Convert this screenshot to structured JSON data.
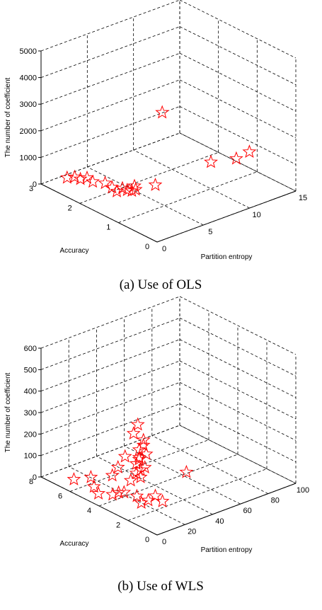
{
  "chart_data": [
    {
      "type": "scatter3d",
      "caption": "(a) Use of OLS",
      "xlabel": "Partition entropy",
      "ylabel": "Accuracy",
      "zlabel": "The number of coefficient",
      "xlim": [
        0,
        15
      ],
      "ylim": [
        0,
        3
      ],
      "zlim": [
        0,
        5000
      ],
      "xticks": [
        0,
        5,
        10,
        15
      ],
      "yticks": [
        0,
        1,
        2,
        3
      ],
      "zticks": [
        0,
        1000,
        2000,
        3000,
        4000,
        5000
      ],
      "grid": true,
      "color": "#ff0000",
      "marker": "star",
      "x": [
        2.4,
        2.8,
        3.0,
        3.3,
        3.5,
        4.0,
        3.5,
        3.8,
        4.2,
        4.5,
        4.8,
        5.0,
        5.5,
        6.5,
        10,
        14,
        15,
        8.5
      ],
      "y": [
        2.9,
        2.8,
        2.7,
        2.6,
        2.5,
        2.3,
        2.0,
        1.95,
        1.9,
        1.85,
        1.8,
        1.75,
        1.9,
        1.6,
        1.0,
        1.3,
        1.2,
        1.9
      ],
      "z": [
        0,
        50,
        20,
        100,
        0,
        30,
        150,
        0,
        100,
        30,
        0,
        60,
        20,
        150,
        1000,
        400,
        600,
        2400
      ]
    },
    {
      "type": "scatter3d",
      "caption": "(b) Use of WLS",
      "xlabel": "Partition entropy",
      "ylabel": "Accuracy",
      "zlabel": "The number of coefficient",
      "xlim": [
        0,
        100
      ],
      "ylim": [
        0,
        8
      ],
      "zlim": [
        0,
        600
      ],
      "xticks": [
        0,
        20,
        40,
        60,
        80,
        100
      ],
      "yticks": [
        0,
        2,
        4,
        6,
        8
      ],
      "zticks": [
        0,
        100,
        200,
        300,
        400,
        500,
        600
      ],
      "grid": true,
      "color": "#ff0000",
      "marker": "star",
      "x": [
        30,
        28,
        32,
        33,
        31,
        34,
        30,
        32,
        29,
        33,
        31,
        30,
        32,
        27,
        25,
        22,
        20,
        10,
        12,
        15,
        18,
        20,
        22,
        25,
        28,
        30,
        15,
        8,
        12,
        64
      ],
      "y": [
        4.2,
        4.3,
        4.0,
        4.1,
        4.2,
        4.0,
        4.1,
        4.3,
        4.2,
        4.0,
        4.1,
        4.3,
        4.2,
        4.4,
        4.6,
        4.8,
        5.0,
        5.0,
        5.5,
        4.5,
        4.0,
        3.0,
        3.5,
        3.0,
        2.8,
        2.5,
        6.0,
        6.5,
        3.8,
        4.1
      ],
      "z": [
        300,
        260,
        230,
        200,
        180,
        160,
        150,
        130,
        120,
        100,
        90,
        70,
        50,
        40,
        150,
        100,
        60,
        0,
        10,
        0,
        20,
        0,
        10,
        0,
        20,
        0,
        30,
        20,
        40,
        0
      ]
    }
  ]
}
